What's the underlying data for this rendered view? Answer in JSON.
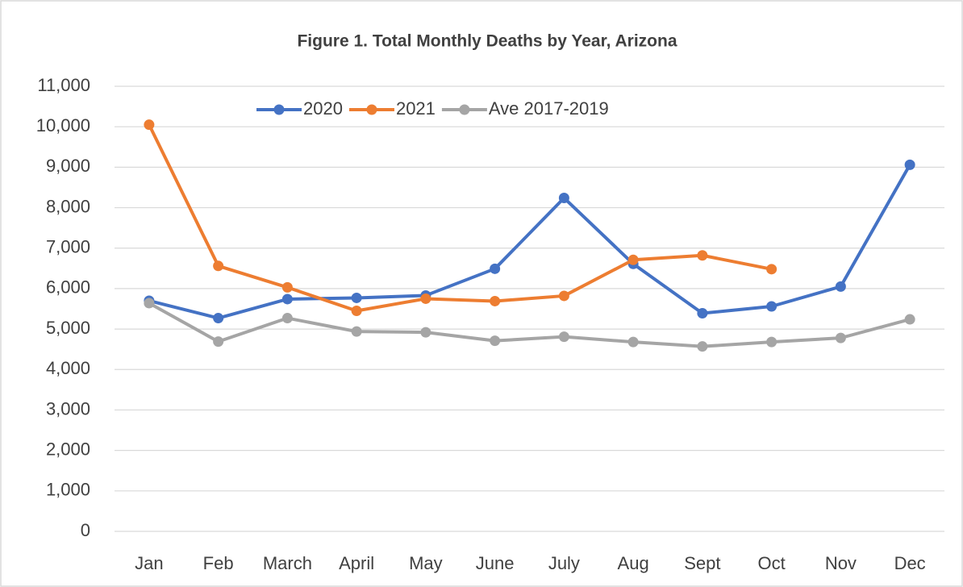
{
  "chart_data": {
    "type": "line",
    "title": "Figure 1. Total Monthly Deaths by Year, Arizona",
    "categories": [
      "Jan",
      "Feb",
      "March",
      "April",
      "May",
      "June",
      "July",
      "Aug",
      "Sept",
      "Oct",
      "Nov",
      "Dec"
    ],
    "series": [
      {
        "name": "2020",
        "color": "#4472c4",
        "values": [
          5700,
          5270,
          5740,
          5770,
          5830,
          6490,
          8240,
          6610,
          5390,
          5560,
          6050,
          9060
        ]
      },
      {
        "name": "2021",
        "color": "#ed7d31",
        "values": [
          10050,
          6560,
          6030,
          5450,
          5750,
          5690,
          5820,
          6710,
          6820,
          6480,
          null,
          null
        ]
      },
      {
        "name": "Ave 2017-2019",
        "color": "#a5a5a5",
        "values": [
          5640,
          4690,
          5270,
          4940,
          4920,
          4710,
          4810,
          4680,
          4570,
          4680,
          4780,
          5240
        ]
      }
    ],
    "ylim": [
      0,
      11000
    ],
    "yticks": [
      0,
      {
        "value": 1000,
        "label": "1,000"
      },
      {
        "value": 2000,
        "label": "2,000"
      },
      {
        "value": 3000,
        "label": "3,000"
      },
      {
        "value": 4000,
        "label": "4,000"
      },
      {
        "value": 5000,
        "label": "5,000"
      },
      {
        "value": 6000,
        "label": "6,000"
      },
      {
        "value": 7000,
        "label": "7,000"
      },
      {
        "value": 8000,
        "label": "8,000"
      },
      {
        "value": 9000,
        "label": "9,000"
      },
      {
        "value": 10000,
        "label": "10,000"
      },
      {
        "value": 11000,
        "label": "11,000"
      }
    ],
    "grid": true,
    "legend": "top"
  }
}
